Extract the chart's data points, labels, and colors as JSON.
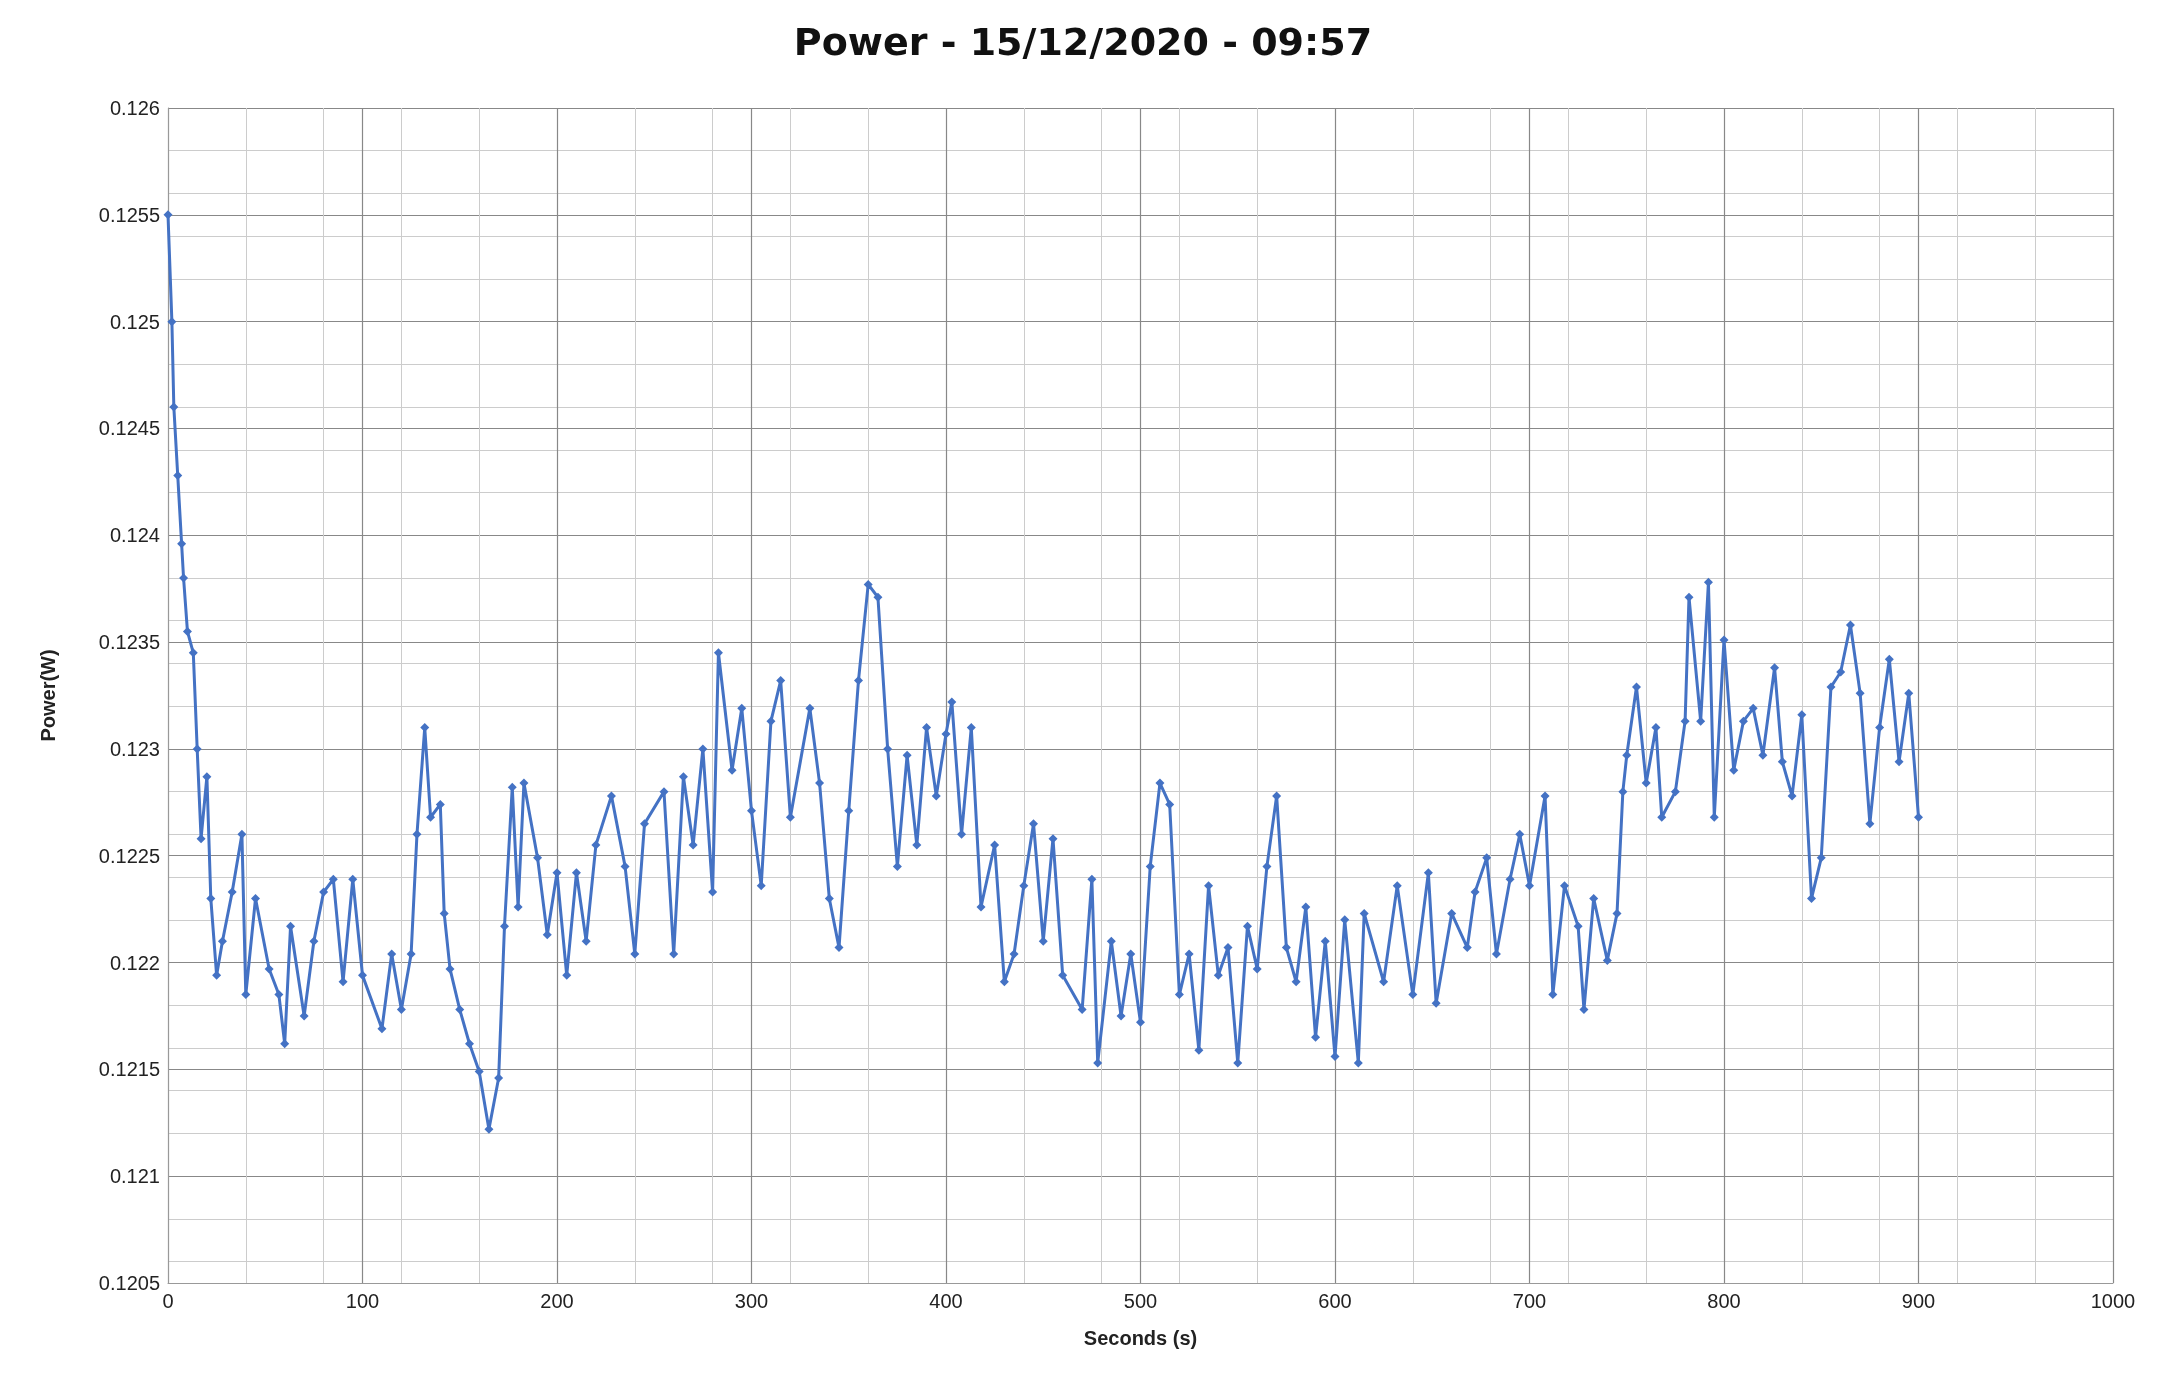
{
  "chart_data": {
    "type": "line",
    "title": "Power - 15/12/2020 - 09:57",
    "xlabel": "Seconds (s)",
    "ylabel": "Power(W)",
    "series": [
      {
        "color": "#4472c4",
        "x": [
          0,
          2,
          3,
          5,
          7,
          8,
          10,
          13,
          15,
          17,
          20,
          22,
          25,
          28,
          33,
          38,
          40,
          45,
          52,
          57,
          60,
          63,
          70,
          75,
          80,
          85,
          90,
          95,
          100,
          110,
          115,
          120,
          125,
          128,
          132,
          135,
          140,
          142,
          145,
          150,
          155,
          160,
          165,
          170,
          173,
          177,
          180,
          183,
          190,
          195,
          200,
          205,
          210,
          215,
          220,
          228,
          235,
          240,
          245,
          255,
          260,
          265,
          270,
          275,
          280,
          283,
          290,
          295,
          300,
          305,
          310,
          315,
          320,
          330,
          335,
          340,
          345,
          350,
          355,
          360,
          365,
          370,
          375,
          380,
          385,
          390,
          395,
          400,
          403,
          408,
          413,
          418,
          425,
          430,
          435,
          440,
          445,
          450,
          455,
          460,
          470,
          475,
          478,
          485,
          490,
          495,
          500,
          505,
          510,
          515,
          520,
          525,
          530,
          535,
          540,
          545,
          550,
          555,
          560,
          565,
          570,
          575,
          580,
          585,
          590,
          595,
          600,
          605,
          612,
          615,
          625,
          632,
          640,
          648,
          652,
          660,
          668,
          672,
          678,
          683,
          690,
          695,
          700,
          708,
          712,
          718,
          725,
          728,
          733,
          740,
          745,
          748,
          750,
          755,
          760,
          765,
          768,
          775,
          780,
          782,
          788,
          792,
          795,
          800,
          805,
          810,
          815,
          820,
          826,
          830,
          835,
          840,
          845,
          850,
          855,
          860,
          865,
          870,
          875,
          880,
          885,
          890,
          895,
          900
        ],
        "values": [
          0.1255,
          0.125,
          0.1246,
          0.12428,
          0.12396,
          0.1238,
          0.12355,
          0.12345,
          0.123,
          0.12258,
          0.12287,
          0.1223,
          0.12194,
          0.1221,
          0.12233,
          0.1226,
          0.12185,
          0.1223,
          0.12197,
          0.12185,
          0.12162,
          0.12217,
          0.12175,
          0.1221,
          0.12233,
          0.12239,
          0.12191,
          0.12239,
          0.12194,
          0.12169,
          0.12204,
          0.12178,
          0.12204,
          0.1226,
          0.1231,
          0.12268,
          0.12274,
          0.12223,
          0.12197,
          0.12178,
          0.12162,
          0.12149,
          0.12122,
          0.12146,
          0.12217,
          0.12282,
          0.12226,
          0.12284,
          0.12249,
          0.12213,
          0.12242,
          0.12194,
          0.12242,
          0.1221,
          0.12255,
          0.12278,
          0.12245,
          0.12204,
          0.12265,
          0.1228,
          0.12204,
          0.12287,
          0.12255,
          0.123,
          0.12233,
          0.12345,
          0.1229,
          0.12319,
          0.12271,
          0.12236,
          0.12313,
          0.12332,
          0.12268,
          0.12319,
          0.12284,
          0.1223,
          0.12207,
          0.12271,
          0.12332,
          0.12377,
          0.12371,
          0.123,
          0.12245,
          0.12297,
          0.12255,
          0.1231,
          0.12278,
          0.12307,
          0.12322,
          0.1226,
          0.1231,
          0.12226,
          0.12255,
          0.12191,
          0.12204,
          0.12236,
          0.12265,
          0.1221,
          0.12258,
          0.12194,
          0.12178,
          0.12239,
          0.12153,
          0.1221,
          0.12175,
          0.12204,
          0.12172,
          0.12245,
          0.12284,
          0.12274,
          0.12185,
          0.12204,
          0.12159,
          0.12236,
          0.12194,
          0.12207,
          0.12153,
          0.12217,
          0.12197,
          0.12245,
          0.12278,
          0.12207,
          0.12191,
          0.12226,
          0.12165,
          0.1221,
          0.12156,
          0.1222,
          0.12153,
          0.12223,
          0.12191,
          0.12236,
          0.12185,
          0.12242,
          0.12181,
          0.12223,
          0.12207,
          0.12233,
          0.12249,
          0.12204,
          0.12239,
          0.1226,
          0.12236,
          0.12278,
          0.12185,
          0.12236,
          0.12217,
          0.12178,
          0.1223,
          0.12201,
          0.12223,
          0.1228,
          0.12297,
          0.12329,
          0.12284,
          0.1231,
          0.12268,
          0.1228,
          0.12313,
          0.12371,
          0.12313,
          0.12378,
          0.12268,
          0.12351,
          0.1229,
          0.12313,
          0.12319,
          0.12297,
          0.12338,
          0.12294,
          0.12278,
          0.12316,
          0.1223,
          0.12249,
          0.12329,
          0.12336,
          0.12358,
          0.12326,
          0.12265,
          0.1231,
          0.12342,
          0.12294,
          0.12326,
          0.12268
        ]
      }
    ],
    "xlim": [
      0,
      1000
    ],
    "xticks": [
      0,
      100,
      200,
      300,
      400,
      500,
      600,
      700,
      800,
      900,
      1000
    ],
    "ylim": [
      0.1205,
      0.126
    ],
    "yticks": [
      0.1205,
      0.121,
      0.1215,
      0.122,
      0.1225,
      0.123,
      0.1235,
      0.124,
      0.1245,
      0.125,
      0.1255,
      0.126
    ],
    "grid": true,
    "marker": "diamond",
    "line_style": "solid"
  }
}
